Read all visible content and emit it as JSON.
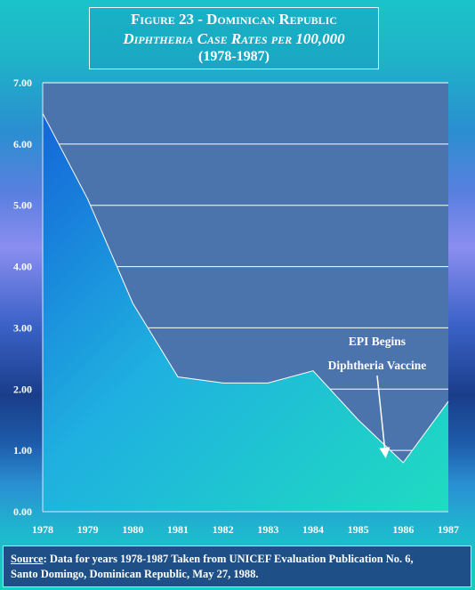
{
  "title": {
    "line1": "Figure 23 - Dominican Republic",
    "line2": "Diphtheria Case Rates per 100,000",
    "line3": "(1978-1987)"
  },
  "chart_data": {
    "type": "area",
    "title": "Figure 23 - Dominican Republic Diphtheria Case Rates per 100,000 (1978-1987)",
    "x": [
      "1978",
      "1979",
      "1980",
      "1981",
      "1982",
      "1983",
      "1984",
      "1985",
      "1986",
      "1987"
    ],
    "values": [
      6.5,
      5.1,
      3.4,
      2.2,
      2.1,
      2.1,
      2.3,
      1.5,
      0.8,
      1.8
    ],
    "ylim": [
      0,
      7
    ],
    "yticks": [
      "0.00",
      "1.00",
      "2.00",
      "3.00",
      "4.00",
      "5.00",
      "6.00",
      "7.00"
    ],
    "grid": true,
    "annotations": [
      {
        "line1": "EPI Begins",
        "line2": "Diphtheria Vaccine",
        "points_to_x": "1985.6",
        "points_to_y": 0.9
      }
    ],
    "colors": {
      "plot_bg": "#4b73ac",
      "grid": "#ffffff",
      "area_top": "#1c7fe0",
      "area_bottom": "#22d3c2"
    }
  },
  "source": {
    "label": "Source",
    "line1_rest": ": Data for years 1978-1987 Taken from UNICEF Evaluation Publication No. 6,",
    "line2": "Santo Domingo, Dominican Republic, May 27, 1988."
  }
}
